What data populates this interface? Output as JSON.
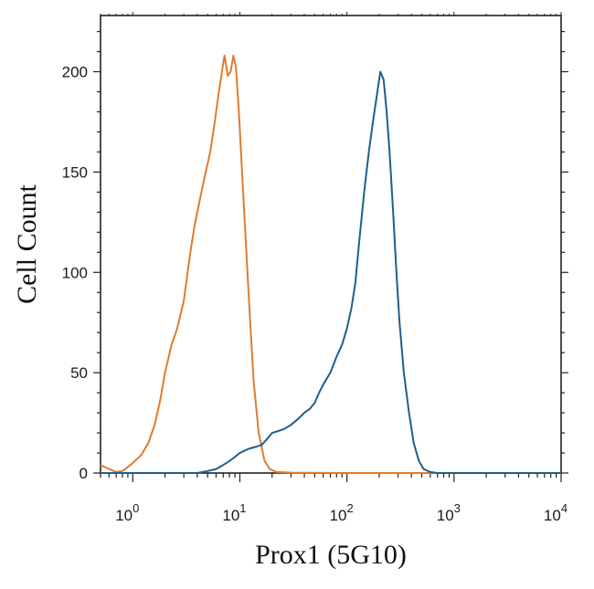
{
  "chart_data": {
    "type": "line",
    "xlabel": "Prox1 (5G10)",
    "ylabel": "Cell Count",
    "x_scale": "log",
    "xlim": [
      0.5,
      10000
    ],
    "ylim": [
      0,
      228
    ],
    "y_ticks": [
      {
        "value": 0,
        "label": "0"
      },
      {
        "value": 50,
        "label": "50"
      },
      {
        "value": 100,
        "label": "100"
      },
      {
        "value": 150,
        "label": "150"
      },
      {
        "value": 200,
        "label": "200"
      }
    ],
    "x_ticks": [
      {
        "value": 1,
        "base": "10",
        "exp": "0"
      },
      {
        "value": 10,
        "base": "10",
        "exp": "1"
      },
      {
        "value": 100,
        "base": "10",
        "exp": "2"
      },
      {
        "value": 1000,
        "base": "10",
        "exp": "3"
      },
      {
        "value": 10000,
        "base": "10",
        "exp": "4"
      }
    ],
    "grid": false,
    "series": [
      {
        "color": "#e07b2e",
        "points": [
          [
            0.5,
            4
          ],
          [
            0.6,
            2
          ],
          [
            0.7,
            0.5
          ],
          [
            0.8,
            1
          ],
          [
            0.9,
            3
          ],
          [
            1.0,
            5
          ],
          [
            1.2,
            9
          ],
          [
            1.4,
            15
          ],
          [
            1.6,
            24
          ],
          [
            1.8,
            36
          ],
          [
            2.0,
            50
          ],
          [
            2.3,
            64
          ],
          [
            2.6,
            72
          ],
          [
            3.0,
            86
          ],
          [
            3.4,
            108
          ],
          [
            3.8,
            124
          ],
          [
            4.3,
            138
          ],
          [
            4.8,
            150
          ],
          [
            5.3,
            160
          ],
          [
            5.8,
            174
          ],
          [
            6.3,
            188
          ],
          [
            6.8,
            200
          ],
          [
            7.2,
            208
          ],
          [
            7.7,
            198
          ],
          [
            8.2,
            200
          ],
          [
            8.7,
            208
          ],
          [
            9.2,
            202
          ],
          [
            9.8,
            180
          ],
          [
            10.5,
            150
          ],
          [
            11.5,
            110
          ],
          [
            12.5,
            75
          ],
          [
            13.5,
            45
          ],
          [
            15,
            20
          ],
          [
            17,
            6
          ],
          [
            19,
            2
          ],
          [
            22,
            0.5
          ],
          [
            30,
            0.2
          ],
          [
            100,
            0
          ],
          [
            1000,
            0
          ],
          [
            10000,
            0
          ]
        ]
      },
      {
        "color": "#1f5f8b",
        "points": [
          [
            0.5,
            0
          ],
          [
            2,
            0
          ],
          [
            4,
            0
          ],
          [
            5,
            1
          ],
          [
            6,
            2
          ],
          [
            7,
            4
          ],
          [
            8,
            6
          ],
          [
            9,
            8
          ],
          [
            10,
            10
          ],
          [
            12,
            12
          ],
          [
            14,
            13
          ],
          [
            16,
            14
          ],
          [
            18,
            17
          ],
          [
            20,
            20
          ],
          [
            23,
            21
          ],
          [
            26,
            22
          ],
          [
            30,
            24
          ],
          [
            35,
            27
          ],
          [
            40,
            30
          ],
          [
            45,
            32
          ],
          [
            50,
            35
          ],
          [
            55,
            40
          ],
          [
            60,
            44
          ],
          [
            70,
            50
          ],
          [
            80,
            58
          ],
          [
            90,
            64
          ],
          [
            100,
            72
          ],
          [
            110,
            82
          ],
          [
            120,
            95
          ],
          [
            130,
            115
          ],
          [
            145,
            140
          ],
          [
            160,
            160
          ],
          [
            175,
            175
          ],
          [
            190,
            188
          ],
          [
            205,
            200
          ],
          [
            220,
            196
          ],
          [
            235,
            180
          ],
          [
            250,
            160
          ],
          [
            270,
            130
          ],
          [
            290,
            100
          ],
          [
            310,
            75
          ],
          [
            340,
            50
          ],
          [
            380,
            30
          ],
          [
            420,
            15
          ],
          [
            470,
            6
          ],
          [
            520,
            2
          ],
          [
            600,
            0.5
          ],
          [
            700,
            0
          ],
          [
            1000,
            0
          ],
          [
            10000,
            0
          ]
        ]
      }
    ]
  }
}
